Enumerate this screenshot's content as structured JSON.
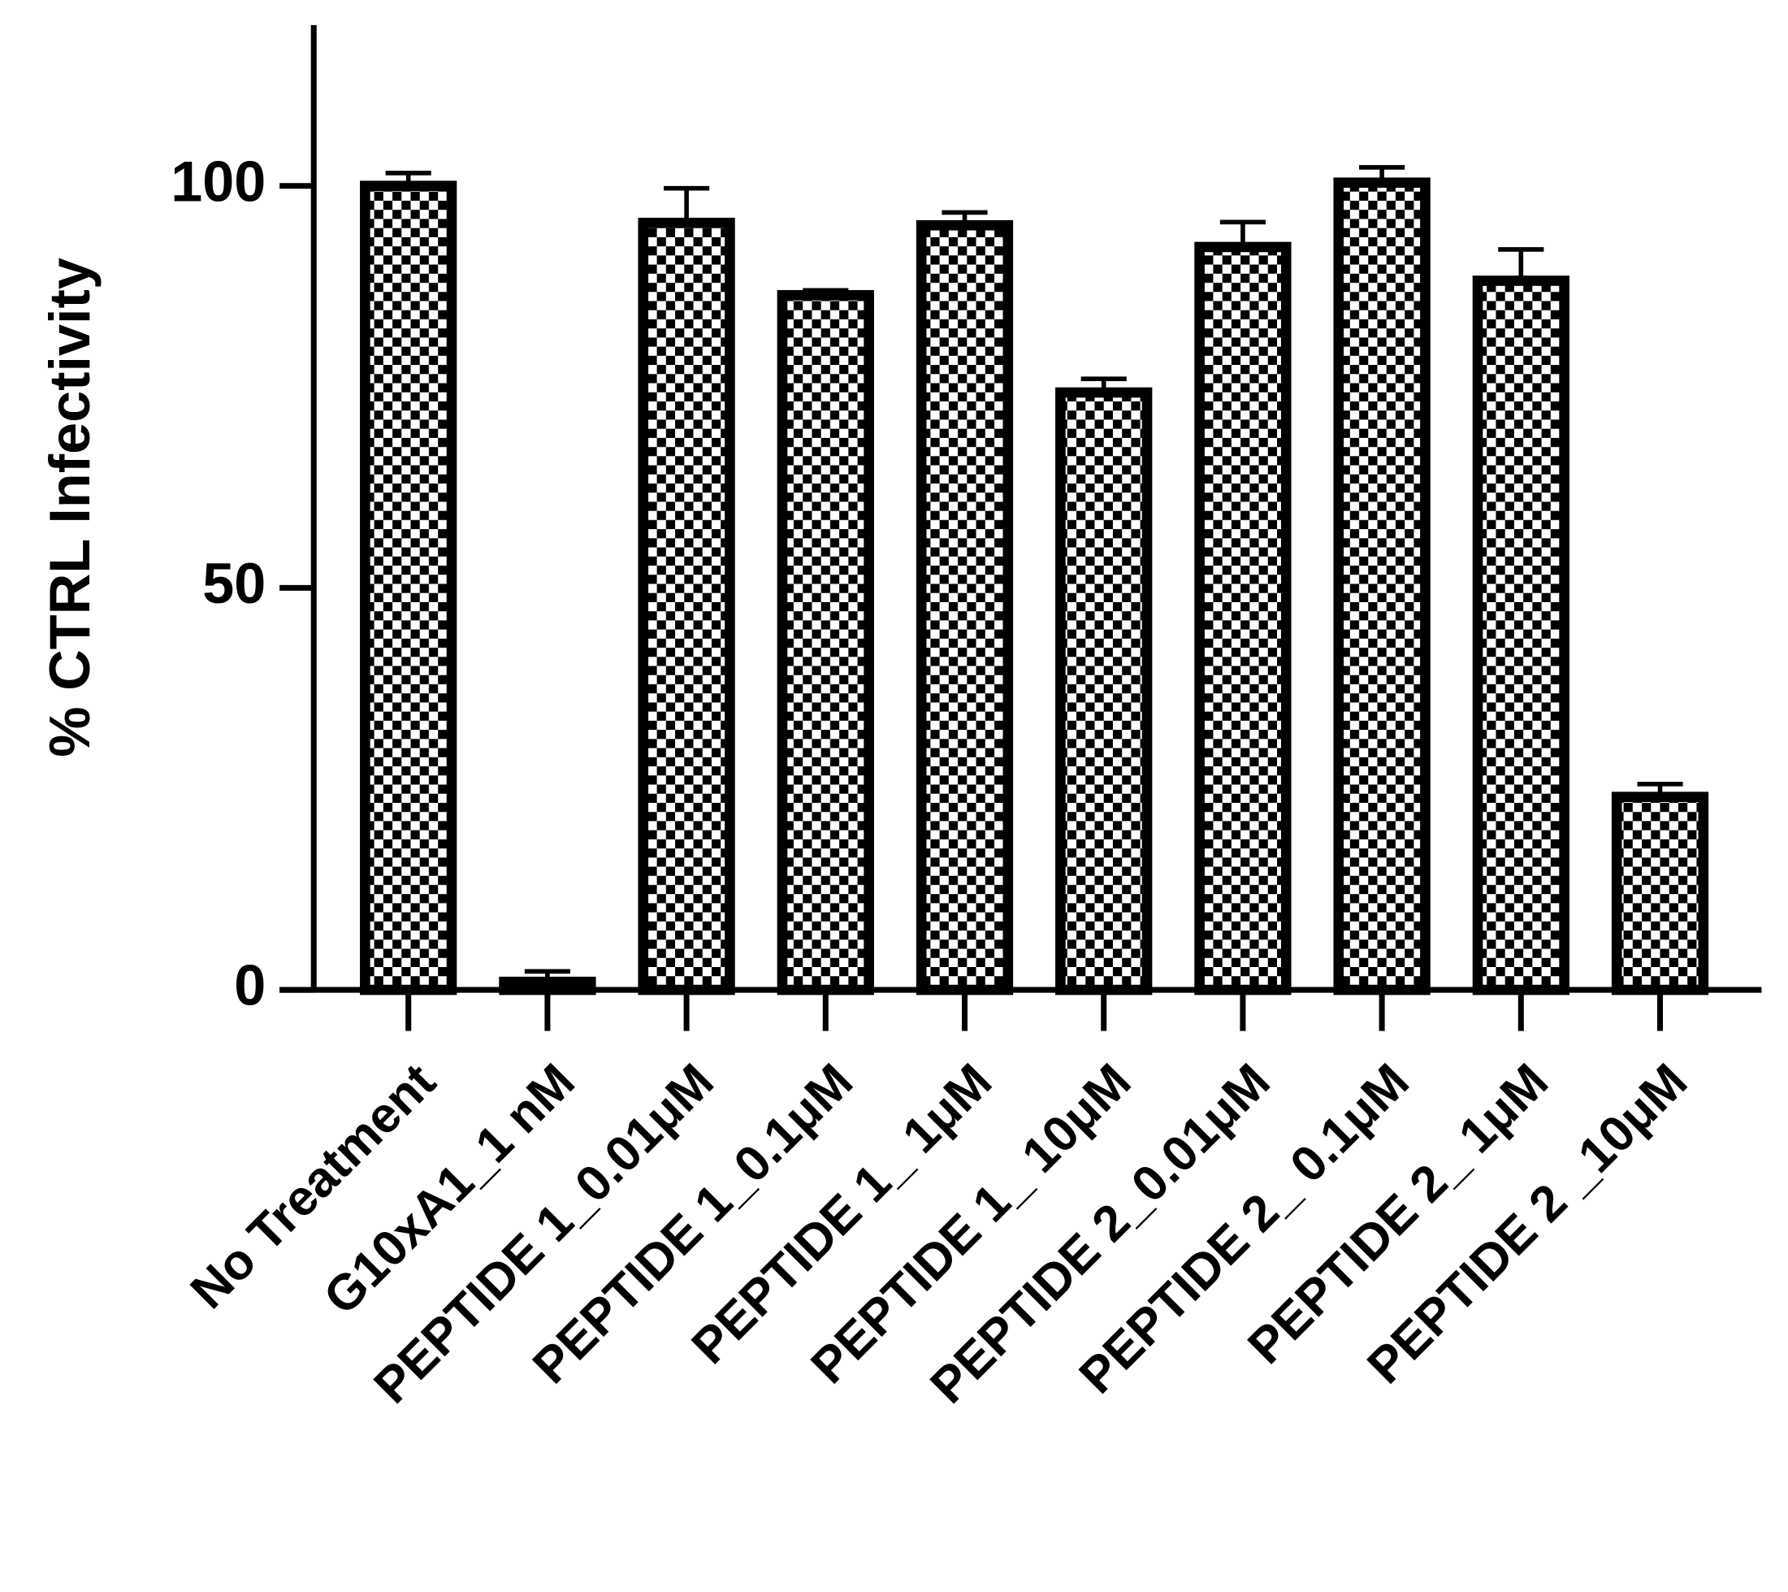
{
  "chart_data": {
    "type": "bar",
    "y_label": "% CTRL Infectivity",
    "categories": [
      "No Treatment",
      "G10xA1_1 nM",
      "PEPTIDE 1_0.01μM",
      "PEPTIDE 1_0.1μM",
      "PEPTIDE 1_ 1μM",
      "PEPTIDE 1_ 10μM",
      "PEPTIDE 2_0.01μM",
      "PEPTIDE 2_ 0.1μM",
      "PEPTIDE 2_ 1μM",
      "PEPTIDE 2 _10μM"
    ],
    "values": [
      100,
      1,
      95.4,
      86.4,
      95.1,
      74.3,
      92.4,
      100.4,
      88.2,
      24
    ],
    "errors": [
      1.6,
      1.3,
      4.3,
      0.6,
      1.6,
      1.7,
      3.1,
      1.9,
      3.9,
      1.6
    ],
    "color": "#000000",
    "ylim": [
      0,
      120
    ],
    "yticks": [
      0,
      50,
      100
    ],
    "grid": false
  }
}
